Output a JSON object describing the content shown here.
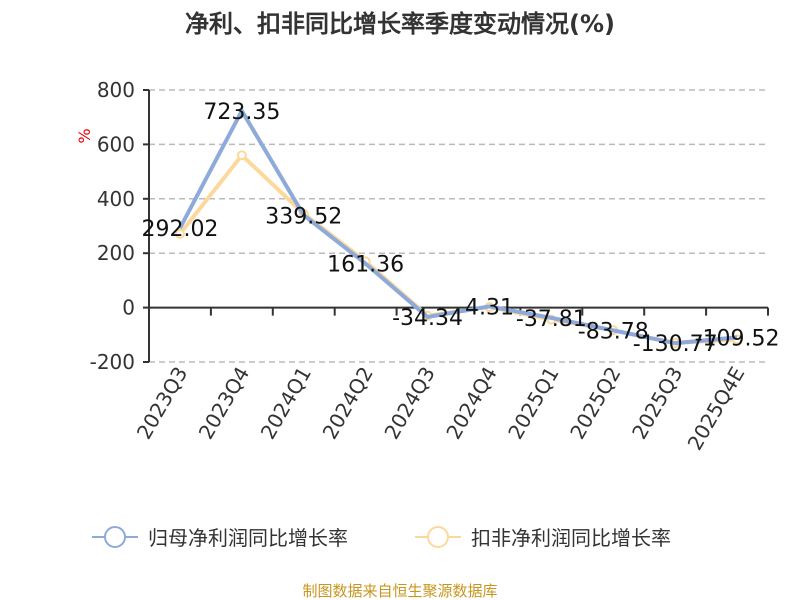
{
  "chart_data": {
    "type": "line",
    "title": "净利、扣非同比增长率季度变动情况(%)",
    "ylabel": "%",
    "ylim": [
      -200,
      800
    ],
    "yticks": [
      -200,
      0,
      200,
      400,
      600,
      800
    ],
    "grid": true,
    "categories": [
      "2023Q3",
      "2023Q4",
      "2024Q1",
      "2024Q2",
      "2024Q3",
      "2024Q4",
      "2025Q1",
      "2025Q2",
      "2025Q3",
      "2025Q4E"
    ],
    "series": [
      {
        "name": "归母净利润同比增长率",
        "color": "#8eaadb",
        "values": [
          292.02,
          723.35,
          339.52,
          161.36,
          -34.34,
          4.31,
          -37.81,
          -83.78,
          -130.77,
          -109.52
        ],
        "labels": [
          "292.02",
          "723.35",
          "339.52",
          "161.36",
          "-34.34",
          "4.31",
          "-37.81",
          "-83.78",
          "-130.77",
          "-109.52"
        ]
      },
      {
        "name": "扣非净利润同比增长率",
        "color": "#fdd89b",
        "values": [
          271,
          560,
          345,
          170,
          -30,
          2,
          -44,
          -83,
          -130,
          -117
        ]
      }
    ],
    "legend_position": "bottom"
  },
  "source": "制图数据来自恒生聚源数据库"
}
